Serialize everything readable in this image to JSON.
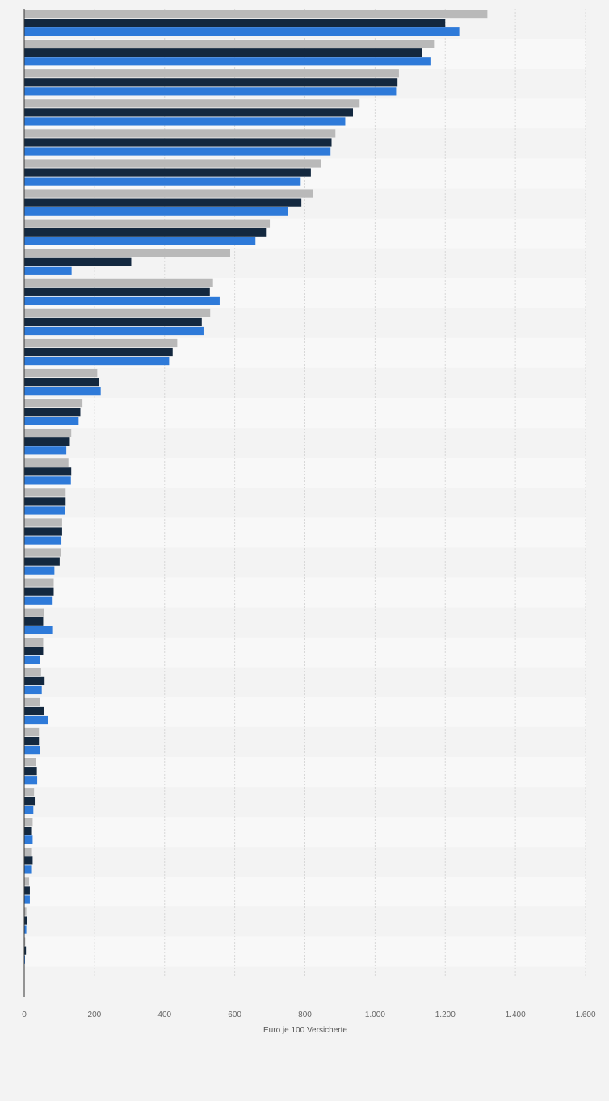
{
  "chart_data": {
    "type": "bar",
    "orientation": "horizontal",
    "xlabel": "Euro je 100 Versicherte",
    "ylabel": "",
    "xlim": [
      0,
      1600
    ],
    "xticks": [
      0,
      200,
      400,
      600,
      800,
      1000,
      1200,
      1400,
      1600
    ],
    "tick_labels": [
      "0",
      "200",
      "400",
      "600",
      "800",
      "1.000",
      "1.200",
      "1.400",
      "1.600"
    ],
    "grid": true,
    "legend": "none",
    "colors": [
      "#b9b9b9",
      "#13283f",
      "#2e7ad9"
    ],
    "series": [
      {
        "values": [
          1320,
          1168,
          1068,
          956,
          887,
          845,
          822,
          700,
          587,
          538,
          530,
          436,
          208,
          166,
          134,
          126,
          118,
          108,
          104,
          84,
          56,
          54,
          48,
          46,
          42,
          34,
          28,
          24,
          22,
          14,
          6,
          3
        ]
      },
      {
        "values": [
          1200,
          1134,
          1064,
          937,
          876,
          817,
          790,
          689,
          305,
          529,
          506,
          423,
          212,
          160,
          130,
          134,
          118,
          108,
          101,
          84,
          54,
          54,
          58,
          56,
          42,
          36,
          30,
          22,
          24,
          16,
          7,
          5
        ]
      },
      {
        "values": [
          1240,
          1160,
          1060,
          915,
          873,
          788,
          751,
          659,
          135,
          557,
          511,
          413,
          218,
          155,
          120,
          133,
          116,
          106,
          86,
          81,
          82,
          44,
          50,
          68,
          44,
          37,
          26,
          24,
          22,
          16,
          6,
          2
        ]
      }
    ]
  }
}
